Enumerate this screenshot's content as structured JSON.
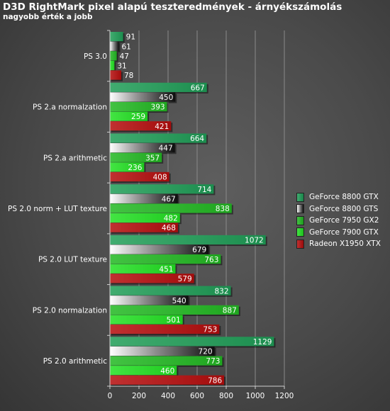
{
  "title": "D3D RightMark pixel alapú teszteredmények - árnyékszámolás",
  "subtitle": "nagyobb érték a jobb",
  "colors": {
    "GeForce 8800 GTX": "#1f9d57",
    "GeForce 8800 GTS": "#3a3a3a",
    "GeForce 7950 GX2": "#22b822",
    "GeForce 7900 GTX": "#22e022",
    "Radeon X1950 XTX": "#b50d0d"
  },
  "chart_data": {
    "type": "bar",
    "orientation": "horizontal",
    "title": "D3D RightMark pixel alapú teszteredmények - árnyékszámolás",
    "subtitle": "nagyobb érték a jobb",
    "xlim": [
      0,
      1200
    ],
    "x_ticks": [
      0,
      200,
      400,
      600,
      800,
      1000,
      1200
    ],
    "grid": true,
    "legend_position": "right",
    "categories": [
      "PS 3.0",
      "PS 2.a normalzation",
      "PS 2.a arithmetic",
      "PS 2.0 norm + LUT texture",
      "PS 2.0 LUT texture",
      "PS 2.0 normalzation",
      "PS 2.0 arithmetic"
    ],
    "series": [
      {
        "name": "GeForce 8800 GTX",
        "values": [
          91,
          667,
          664,
          714,
          1072,
          832,
          1129
        ]
      },
      {
        "name": "GeForce 8800 GTS",
        "values": [
          61,
          450,
          447,
          467,
          679,
          540,
          720
        ]
      },
      {
        "name": "GeForce 7950 GX2",
        "values": [
          47,
          393,
          357,
          838,
          763,
          887,
          773
        ]
      },
      {
        "name": "GeForce 7900 GTX",
        "values": [
          31,
          259,
          236,
          482,
          451,
          501,
          460
        ]
      },
      {
        "name": "Radeon X1950 XTX",
        "values": [
          78,
          421,
          408,
          468,
          579,
          753,
          786
        ]
      }
    ]
  }
}
